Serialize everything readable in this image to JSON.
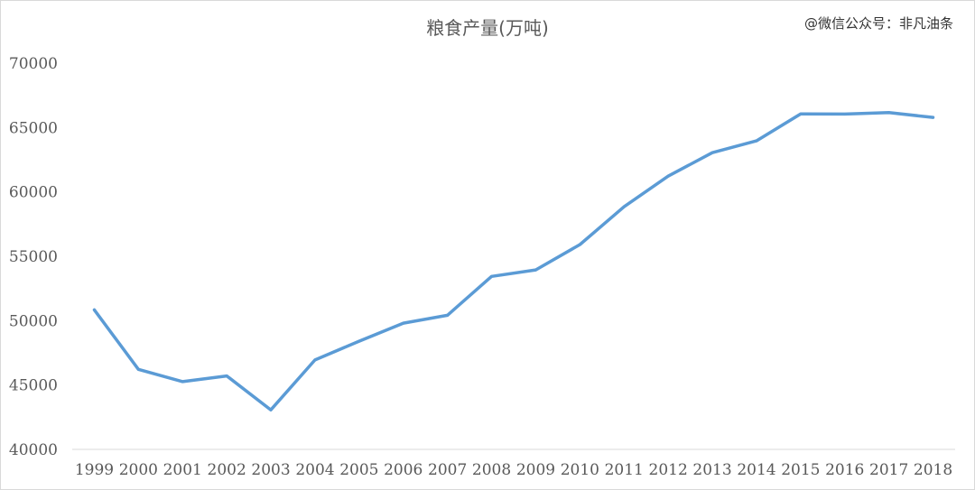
{
  "watermark": "@微信公众号：非凡油条",
  "colors": {
    "line": "#5B9BD5",
    "axis": "#D9D9D9",
    "text": "#595959",
    "border": "#D9D9D9"
  },
  "chart_data": {
    "type": "line",
    "title": "粮食产量(万吨)",
    "xlabel": "",
    "ylabel": "",
    "grid": false,
    "legend": "none",
    "categories": [
      "1999",
      "2000",
      "2001",
      "2002",
      "2003",
      "2004",
      "2005",
      "2006",
      "2007",
      "2008",
      "2009",
      "2010",
      "2011",
      "2012",
      "2013",
      "2014",
      "2015",
      "2016",
      "2017",
      "2018"
    ],
    "series": [
      {
        "values": [
          50839,
          46218,
          45264,
          45706,
          43070,
          46947,
          48402,
          49804,
          50414,
          53434,
          53941,
          55911,
          58849,
          61223,
          63048,
          63965,
          66060,
          66044,
          66161,
          65789
        ]
      }
    ],
    "ylim": [
      40000,
      70000
    ],
    "yticks": [
      "40000",
      "45000",
      "50000",
      "55000",
      "60000",
      "65000",
      "70000"
    ]
  }
}
